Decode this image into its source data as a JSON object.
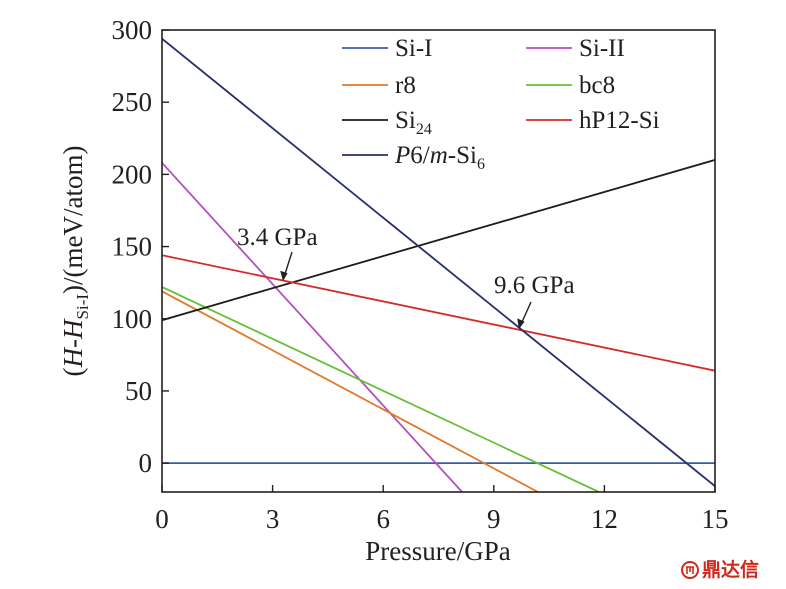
{
  "chart_data": {
    "type": "line",
    "title": "",
    "xlabel": "Pressure/GPa",
    "ylabel_parts": {
      "pre": "(",
      "H1": "H",
      "dash": "-",
      "H2": "H",
      "sub": "Si-I",
      "post": ")/(meV/atom)"
    },
    "xlim": [
      0,
      15
    ],
    "ylim": [
      -20,
      300
    ],
    "xticks": [
      0,
      3,
      6,
      9,
      12,
      15
    ],
    "yticks": [
      0,
      50,
      100,
      150,
      200,
      250,
      300
    ],
    "grid": false,
    "legend_position": "top",
    "series": [
      {
        "id": "si1",
        "name": "Si-I",
        "color": "#3b5ba5",
        "x": [
          0,
          15
        ],
        "y": [
          0,
          0
        ]
      },
      {
        "id": "si2",
        "name": "Si-II",
        "color": "#b44fc0",
        "x": [
          0,
          8.14
        ],
        "y": [
          208,
          -20
        ]
      },
      {
        "id": "r8",
        "name": "r8",
        "color": "#e07a2e",
        "x": [
          0,
          10.2
        ],
        "y": [
          119,
          -20
        ]
      },
      {
        "id": "bc8",
        "name": "bc8",
        "color": "#68bf3a",
        "x": [
          0,
          11.85
        ],
        "y": [
          122,
          -20
        ]
      },
      {
        "id": "si24",
        "name": "Si24",
        "name_base": "Si",
        "name_sub": "24",
        "color": "#1c1c1c",
        "x": [
          0,
          15
        ],
        "y": [
          99,
          210
        ]
      },
      {
        "id": "hp12",
        "name": "hP12-Si",
        "color": "#d62a28",
        "x": [
          0,
          15
        ],
        "y": [
          144,
          64
        ]
      },
      {
        "id": "p6m",
        "name": "P6/m-Si6",
        "name_parts": {
          "P": "P",
          "six": "6/",
          "m": "m",
          "si": "-Si",
          "sub": "6"
        },
        "color": "#262f6e",
        "x": [
          0,
          15
        ],
        "y": [
          294,
          -16
        ]
      }
    ],
    "annotations": [
      {
        "text": "3.4 GPa",
        "x": 3.4,
        "y": 126
      },
      {
        "text": "9.6 GPa",
        "x": 9.6,
        "y": 92
      }
    ]
  },
  "watermark": {
    "text": "鼎达信"
  }
}
